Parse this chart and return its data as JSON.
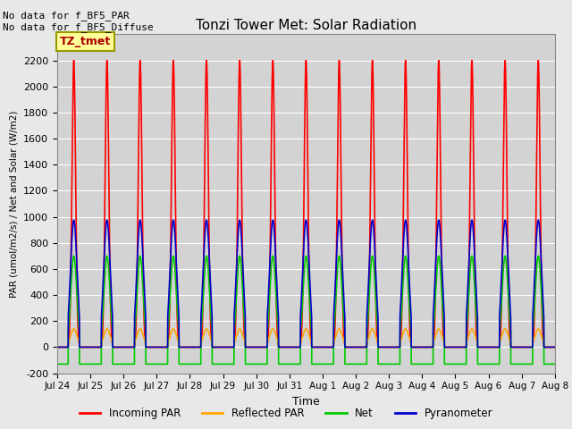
{
  "title": "Tonzi Tower Met: Solar Radiation",
  "ylabel": "PAR (umol/m2/s) / Net and Solar (W/m2)",
  "xlabel": "Time",
  "background_color": "#e8e8e8",
  "plot_bg_color": "#d3d3d3",
  "no_data_text_1": "No data for f_BF5_PAR",
  "no_data_text_2": "No data for f_BF5_Diffuse",
  "legend_box_label": "TZ_tmet",
  "legend_box_color": "#ffff99",
  "legend_box_edge": "#999900",
  "legend_items": [
    "Incoming PAR",
    "Reflected PAR",
    "Net",
    "Pyranometer"
  ],
  "legend_colors": [
    "#ff0000",
    "#ffa500",
    "#00cc00",
    "#0000cc"
  ],
  "ylim": [
    -200,
    2400
  ],
  "yticks": [
    -200,
    0,
    200,
    400,
    600,
    800,
    1000,
    1200,
    1400,
    1600,
    1800,
    2000,
    2200
  ],
  "num_days": 15,
  "points_per_day": 576,
  "incoming_peak": 2200,
  "reflected_peak": 140,
  "net_peak": 700,
  "net_min": -130,
  "pyranometer_peak": 975,
  "line_width": 1.2,
  "day_start": 0.33,
  "day_end": 0.67
}
